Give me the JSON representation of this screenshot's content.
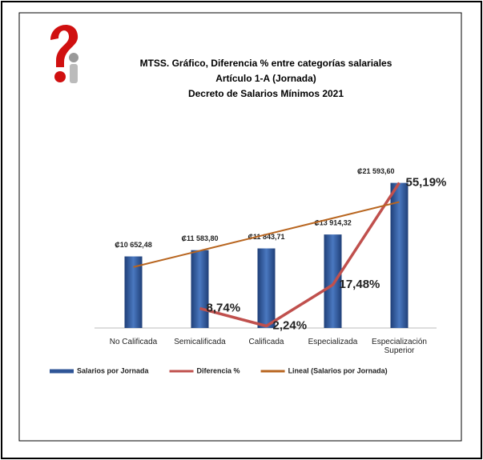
{
  "chart_data": {
    "type": "bar",
    "title": [
      "MTSS. Gráfico,  Diferencia % entre categorías salariales",
      "Artículo 1-A (Jornada)",
      "Decreto de Salarios Mínimos 2021"
    ],
    "categories": [
      "No Calificada",
      "Semicalificada",
      "Calificada",
      "Especializada",
      "Especialización Superior"
    ],
    "series": [
      {
        "name": "Salarios por Jornada",
        "type": "bar",
        "color": "#2f5597",
        "values": [
          10652.48,
          11583.8,
          11843.71,
          13914.32,
          21593.6
        ],
        "value_labels": [
          "₡10 652,48",
          "₡11 583,80",
          "₡11 843,71",
          "₡13 914,32",
          "₡21 593,60"
        ]
      },
      {
        "name": "Diferencia %",
        "type": "line",
        "axis": "y2",
        "color": "#c0504d",
        "values": [
          null,
          8.74,
          2.24,
          17.48,
          55.19
        ],
        "value_labels": [
          null,
          "8,74%",
          "2,24%",
          "17,48%",
          "55,19%"
        ]
      },
      {
        "name": "Lineal (Salarios por Jornada)",
        "type": "line",
        "color": "#b8651f",
        "values": [
          9075,
          11496,
          13918,
          16339,
          18760
        ]
      }
    ],
    "ylim": [
      0,
      25000
    ],
    "y2lim": [
      1.5,
      63.6
    ],
    "legend": "bottom"
  }
}
